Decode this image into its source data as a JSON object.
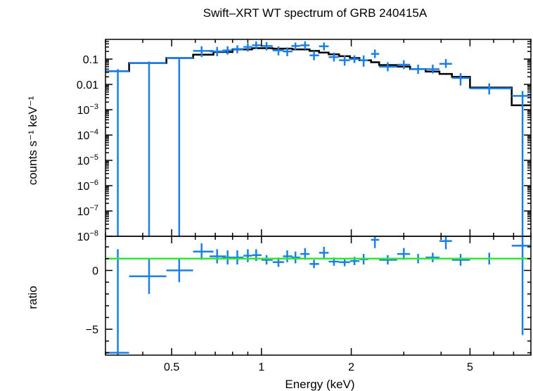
{
  "title": "Swift–XRT WT spectrum of GRB 240415A",
  "colors": {
    "data": "#1a7fe6",
    "model": "#000000",
    "unity": "#2ee82e",
    "frame": "#000000"
  },
  "chart_data": [
    {
      "type": "scatter",
      "panel": "spectrum",
      "xlabel": "",
      "ylabel": "counts s⁻¹ keV⁻¹",
      "xscale": "log",
      "yscale": "log",
      "xlim": [
        0.3,
        8.0
      ],
      "ylim": [
        1e-08,
        0.6
      ],
      "ytick_labels": [
        {
          "v": 0.1,
          "base": "0.1",
          "exp": ""
        },
        {
          "v": 0.01,
          "base": "0.01",
          "exp": ""
        },
        {
          "v": 0.001,
          "base": "10",
          "exp": "−3"
        },
        {
          "v": 0.0001,
          "base": "10",
          "exp": "−4"
        },
        {
          "v": 1e-05,
          "base": "10",
          "exp": "−5"
        },
        {
          "v": 1e-06,
          "base": "10",
          "exp": "−6"
        },
        {
          "v": 1e-07,
          "base": "10",
          "exp": "−7"
        },
        {
          "v": 1e-08,
          "base": "10",
          "exp": "−8"
        }
      ],
      "series": [
        {
          "kind": "data",
          "points": [
            {
              "x": 0.33,
              "xlo": 0.3,
              "xhi": 0.36,
              "y": 0.033,
              "ylo": 1e-09,
              "yhi": 0.04
            },
            {
              "x": 0.42,
              "xlo": 0.36,
              "xhi": 0.48,
              "y": 0.07,
              "ylo": 1e-09,
              "yhi": 0.08
            },
            {
              "x": 0.53,
              "xlo": 0.48,
              "xhi": 0.59,
              "y": 0.11,
              "ylo": 1e-09,
              "yhi": 0.12
            },
            {
              "x": 0.63,
              "xlo": 0.59,
              "xhi": 0.69,
              "y": 0.21,
              "ylo": 0.12,
              "yhi": 0.32
            },
            {
              "x": 0.71,
              "xlo": 0.67,
              "xhi": 0.76,
              "y": 0.2,
              "ylo": 0.13,
              "yhi": 0.3
            },
            {
              "x": 0.77,
              "xlo": 0.74,
              "xhi": 0.8,
              "y": 0.22,
              "ylo": 0.15,
              "yhi": 0.32
            },
            {
              "x": 0.83,
              "xlo": 0.8,
              "xhi": 0.87,
              "y": 0.25,
              "ylo": 0.17,
              "yhi": 0.35
            },
            {
              "x": 0.9,
              "xlo": 0.87,
              "xhi": 0.93,
              "y": 0.3,
              "ylo": 0.2,
              "yhi": 0.42
            },
            {
              "x": 0.96,
              "xlo": 0.93,
              "xhi": 1.0,
              "y": 0.35,
              "ylo": 0.25,
              "yhi": 0.5
            },
            {
              "x": 1.04,
              "xlo": 1.0,
              "xhi": 1.09,
              "y": 0.33,
              "ylo": 0.22,
              "yhi": 0.47
            },
            {
              "x": 1.14,
              "xlo": 1.09,
              "xhi": 1.19,
              "y": 0.22,
              "ylo": 0.14,
              "yhi": 0.32
            },
            {
              "x": 1.22,
              "xlo": 1.18,
              "xhi": 1.27,
              "y": 0.2,
              "ylo": 0.13,
              "yhi": 0.29
            },
            {
              "x": 1.3,
              "xlo": 1.26,
              "xhi": 1.35,
              "y": 0.33,
              "ylo": 0.23,
              "yhi": 0.45
            },
            {
              "x": 1.4,
              "xlo": 1.35,
              "xhi": 1.45,
              "y": 0.35,
              "ylo": 0.24,
              "yhi": 0.5
            },
            {
              "x": 1.5,
              "xlo": 1.45,
              "xhi": 1.56,
              "y": 0.14,
              "ylo": 0.09,
              "yhi": 0.21
            },
            {
              "x": 1.62,
              "xlo": 1.56,
              "xhi": 1.68,
              "y": 0.32,
              "ylo": 0.22,
              "yhi": 0.45
            },
            {
              "x": 1.75,
              "xlo": 1.68,
              "xhi": 1.82,
              "y": 0.12,
              "ylo": 0.08,
              "yhi": 0.18
            },
            {
              "x": 1.9,
              "xlo": 1.82,
              "xhi": 1.98,
              "y": 0.09,
              "ylo": 0.055,
              "yhi": 0.14
            },
            {
              "x": 2.05,
              "xlo": 1.98,
              "xhi": 2.13,
              "y": 0.1,
              "ylo": 0.07,
              "yhi": 0.14
            },
            {
              "x": 2.2,
              "xlo": 2.13,
              "xhi": 2.28,
              "y": 0.09,
              "ylo": 0.05,
              "yhi": 0.14
            },
            {
              "x": 2.4,
              "xlo": 2.33,
              "xhi": 2.48,
              "y": 0.16,
              "ylo": 0.11,
              "yhi": 0.24
            },
            {
              "x": 2.65,
              "xlo": 2.48,
              "xhi": 2.85,
              "y": 0.05,
              "ylo": 0.033,
              "yhi": 0.075
            },
            {
              "x": 3.0,
              "xlo": 2.85,
              "xhi": 3.15,
              "y": 0.06,
              "ylo": 0.04,
              "yhi": 0.09
            },
            {
              "x": 3.35,
              "xlo": 3.15,
              "xhi": 3.55,
              "y": 0.04,
              "ylo": 0.026,
              "yhi": 0.06
            },
            {
              "x": 3.75,
              "xlo": 3.55,
              "xhi": 3.95,
              "y": 0.04,
              "ylo": 0.027,
              "yhi": 0.06
            },
            {
              "x": 4.15,
              "xlo": 3.95,
              "xhi": 4.35,
              "y": 0.065,
              "ylo": 0.045,
              "yhi": 0.1
            },
            {
              "x": 4.65,
              "xlo": 4.35,
              "xhi": 5.0,
              "y": 0.018,
              "ylo": 0.009,
              "yhi": 0.028
            },
            {
              "x": 5.8,
              "xlo": 5.0,
              "xhi": 6.9,
              "y": 0.007,
              "ylo": 0.004,
              "yhi": 0.011
            },
            {
              "x": 7.5,
              "xlo": 6.9,
              "xhi": 8.0,
              "y": 0.0035,
              "ylo": 1e-09,
              "yhi": 0.0055
            }
          ]
        },
        {
          "kind": "model",
          "steps": [
            {
              "xlo": 0.3,
              "xhi": 0.36,
              "y": 0.033
            },
            {
              "xlo": 0.36,
              "xhi": 0.48,
              "y": 0.07
            },
            {
              "xlo": 0.48,
              "xhi": 0.59,
              "y": 0.11
            },
            {
              "xlo": 0.59,
              "xhi": 0.69,
              "y": 0.15
            },
            {
              "xlo": 0.69,
              "xhi": 0.8,
              "y": 0.19
            },
            {
              "xlo": 0.8,
              "xhi": 0.93,
              "y": 0.24
            },
            {
              "xlo": 0.93,
              "xhi": 1.09,
              "y": 0.27
            },
            {
              "xlo": 1.09,
              "xhi": 1.27,
              "y": 0.26
            },
            {
              "xlo": 1.27,
              "xhi": 1.45,
              "y": 0.24
            },
            {
              "xlo": 1.45,
              "xhi": 1.56,
              "y": 0.21
            },
            {
              "xlo": 1.56,
              "xhi": 1.68,
              "y": 0.18
            },
            {
              "xlo": 1.68,
              "xhi": 1.82,
              "y": 0.155
            },
            {
              "xlo": 1.82,
              "xhi": 1.98,
              "y": 0.13
            },
            {
              "xlo": 1.98,
              "xhi": 2.13,
              "y": 0.11
            },
            {
              "xlo": 2.13,
              "xhi": 2.33,
              "y": 0.09
            },
            {
              "xlo": 2.33,
              "xhi": 2.48,
              "y": 0.075
            },
            {
              "xlo": 2.48,
              "xhi": 2.85,
              "y": 0.058
            },
            {
              "xlo": 2.85,
              "xhi": 3.15,
              "y": 0.05
            },
            {
              "xlo": 3.15,
              "xhi": 3.55,
              "y": 0.04
            },
            {
              "xlo": 3.55,
              "xhi": 3.95,
              "y": 0.032
            },
            {
              "xlo": 3.95,
              "xhi": 4.35,
              "y": 0.026
            },
            {
              "xlo": 4.35,
              "xhi": 5.0,
              "y": 0.02
            },
            {
              "xlo": 5.0,
              "xhi": 6.9,
              "y": 0.0075
            },
            {
              "xlo": 6.9,
              "xhi": 8.0,
              "y": 0.0015
            }
          ]
        }
      ]
    },
    {
      "type": "scatter",
      "panel": "ratio",
      "xlabel": "Energy (keV)",
      "ylabel": "ratio",
      "xscale": "log",
      "yscale": "linear",
      "xlim": [
        0.3,
        8.0
      ],
      "ylim": [
        -7.2,
        2.9
      ],
      "xticks": [
        {
          "v": 0.5,
          "label": "0.5"
        },
        {
          "v": 1,
          "label": "1"
        },
        {
          "v": 2,
          "label": "2"
        },
        {
          "v": 5,
          "label": "5"
        }
      ],
      "yticks": [
        {
          "v": 0,
          "label": "0"
        },
        {
          "v": -5,
          "label": "−5"
        }
      ],
      "unity_line": 1,
      "series": [
        {
          "kind": "data",
          "points": [
            {
              "x": 0.33,
              "xlo": 0.3,
              "xhi": 0.36,
              "y": -7.0,
              "ylo": -7.2,
              "yhi": 1.8
            },
            {
              "x": 0.42,
              "xlo": 0.36,
              "xhi": 0.48,
              "y": -0.5,
              "ylo": -2.0,
              "yhi": 1.0
            },
            {
              "x": 0.53,
              "xlo": 0.48,
              "xhi": 0.59,
              "y": 0.0,
              "ylo": -1.0,
              "yhi": 1.0
            },
            {
              "x": 0.63,
              "xlo": 0.59,
              "xhi": 0.69,
              "y": 1.6,
              "ylo": 0.9,
              "yhi": 2.3
            },
            {
              "x": 0.71,
              "xlo": 0.67,
              "xhi": 0.76,
              "y": 1.2,
              "ylo": 0.6,
              "yhi": 1.8
            },
            {
              "x": 0.77,
              "xlo": 0.74,
              "xhi": 0.8,
              "y": 1.1,
              "ylo": 0.5,
              "yhi": 1.7
            },
            {
              "x": 0.83,
              "xlo": 0.8,
              "xhi": 0.87,
              "y": 1.1,
              "ylo": 0.5,
              "yhi": 1.7
            },
            {
              "x": 0.9,
              "xlo": 0.87,
              "xhi": 0.93,
              "y": 1.25,
              "ylo": 0.7,
              "yhi": 1.8
            },
            {
              "x": 0.96,
              "xlo": 0.93,
              "xhi": 1.0,
              "y": 1.3,
              "ylo": 0.8,
              "yhi": 1.8
            },
            {
              "x": 1.04,
              "xlo": 1.0,
              "xhi": 1.09,
              "y": 0.9,
              "ylo": 0.5,
              "yhi": 1.3
            },
            {
              "x": 1.14,
              "xlo": 1.09,
              "xhi": 1.19,
              "y": 0.7,
              "ylo": 0.3,
              "yhi": 1.1
            },
            {
              "x": 1.22,
              "xlo": 1.18,
              "xhi": 1.27,
              "y": 1.2,
              "ylo": 0.7,
              "yhi": 1.7
            },
            {
              "x": 1.3,
              "xlo": 1.26,
              "xhi": 1.35,
              "y": 1.1,
              "ylo": 0.6,
              "yhi": 1.6
            },
            {
              "x": 1.4,
              "xlo": 1.35,
              "xhi": 1.45,
              "y": 1.4,
              "ylo": 0.9,
              "yhi": 1.9
            },
            {
              "x": 1.5,
              "xlo": 1.45,
              "xhi": 1.56,
              "y": 0.55,
              "ylo": 0.2,
              "yhi": 0.9
            },
            {
              "x": 1.62,
              "xlo": 1.56,
              "xhi": 1.68,
              "y": 1.5,
              "ylo": 1.0,
              "yhi": 2.0
            },
            {
              "x": 1.75,
              "xlo": 1.68,
              "xhi": 1.82,
              "y": 0.75,
              "ylo": 0.4,
              "yhi": 1.1
            },
            {
              "x": 1.9,
              "xlo": 1.82,
              "xhi": 1.98,
              "y": 0.7,
              "ylo": 0.35,
              "yhi": 1.05
            },
            {
              "x": 2.05,
              "xlo": 1.98,
              "xhi": 2.13,
              "y": 0.8,
              "ylo": 0.45,
              "yhi": 1.15
            },
            {
              "x": 2.2,
              "xlo": 2.13,
              "xhi": 2.28,
              "y": 0.95,
              "ylo": 0.5,
              "yhi": 1.4
            },
            {
              "x": 2.4,
              "xlo": 2.33,
              "xhi": 2.48,
              "y": 2.6,
              "ylo": 1.9,
              "yhi": 3.1
            },
            {
              "x": 2.65,
              "xlo": 2.48,
              "xhi": 2.85,
              "y": 0.9,
              "ylo": 0.5,
              "yhi": 1.3
            },
            {
              "x": 3.0,
              "xlo": 2.85,
              "xhi": 3.15,
              "y": 1.4,
              "ylo": 0.9,
              "yhi": 1.9
            },
            {
              "x": 3.35,
              "xlo": 3.15,
              "xhi": 3.55,
              "y": 1.0,
              "ylo": 0.6,
              "yhi": 1.4
            },
            {
              "x": 3.75,
              "xlo": 3.55,
              "xhi": 3.95,
              "y": 1.1,
              "ylo": 0.7,
              "yhi": 1.5
            },
            {
              "x": 4.15,
              "xlo": 3.95,
              "xhi": 4.35,
              "y": 2.5,
              "ylo": 1.8,
              "yhi": 3.1
            },
            {
              "x": 4.65,
              "xlo": 4.35,
              "xhi": 5.0,
              "y": 0.9,
              "ylo": 0.4,
              "yhi": 1.4
            },
            {
              "x": 5.8,
              "xlo": 5.0,
              "xhi": 6.9,
              "y": 1.0,
              "ylo": 0.5,
              "yhi": 1.5
            },
            {
              "x": 7.5,
              "xlo": 6.9,
              "xhi": 8.0,
              "y": 2.1,
              "ylo": -5.5,
              "yhi": 2.9
            }
          ]
        }
      ]
    }
  ]
}
